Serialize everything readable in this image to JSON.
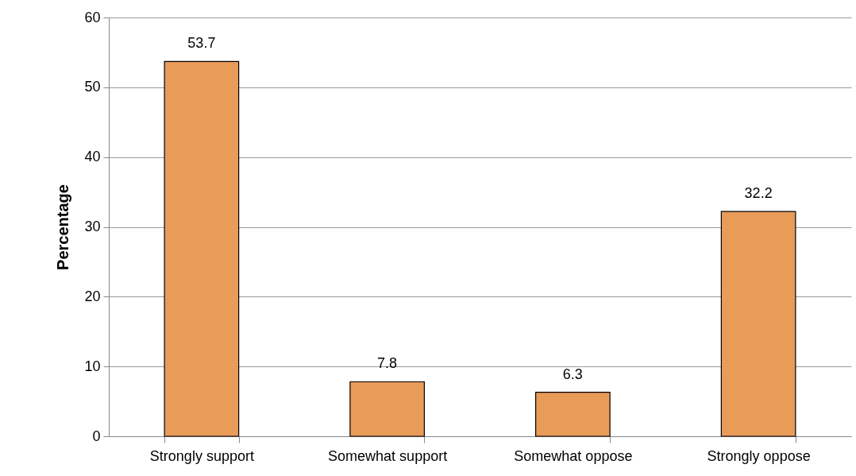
{
  "chart_data": {
    "type": "bar",
    "ylabel": "Percentage",
    "categories": [
      "Strongly support",
      "Somewhat support",
      "Somewhat oppose",
      "Strongly oppose"
    ],
    "values": [
      53.7,
      7.8,
      6.3,
      32.2
    ],
    "color": "#e99b58",
    "ylim": [
      0,
      60
    ],
    "yticks": [
      0,
      10,
      20,
      30,
      40,
      50,
      60
    ],
    "grid": "y",
    "data_labels": true
  }
}
